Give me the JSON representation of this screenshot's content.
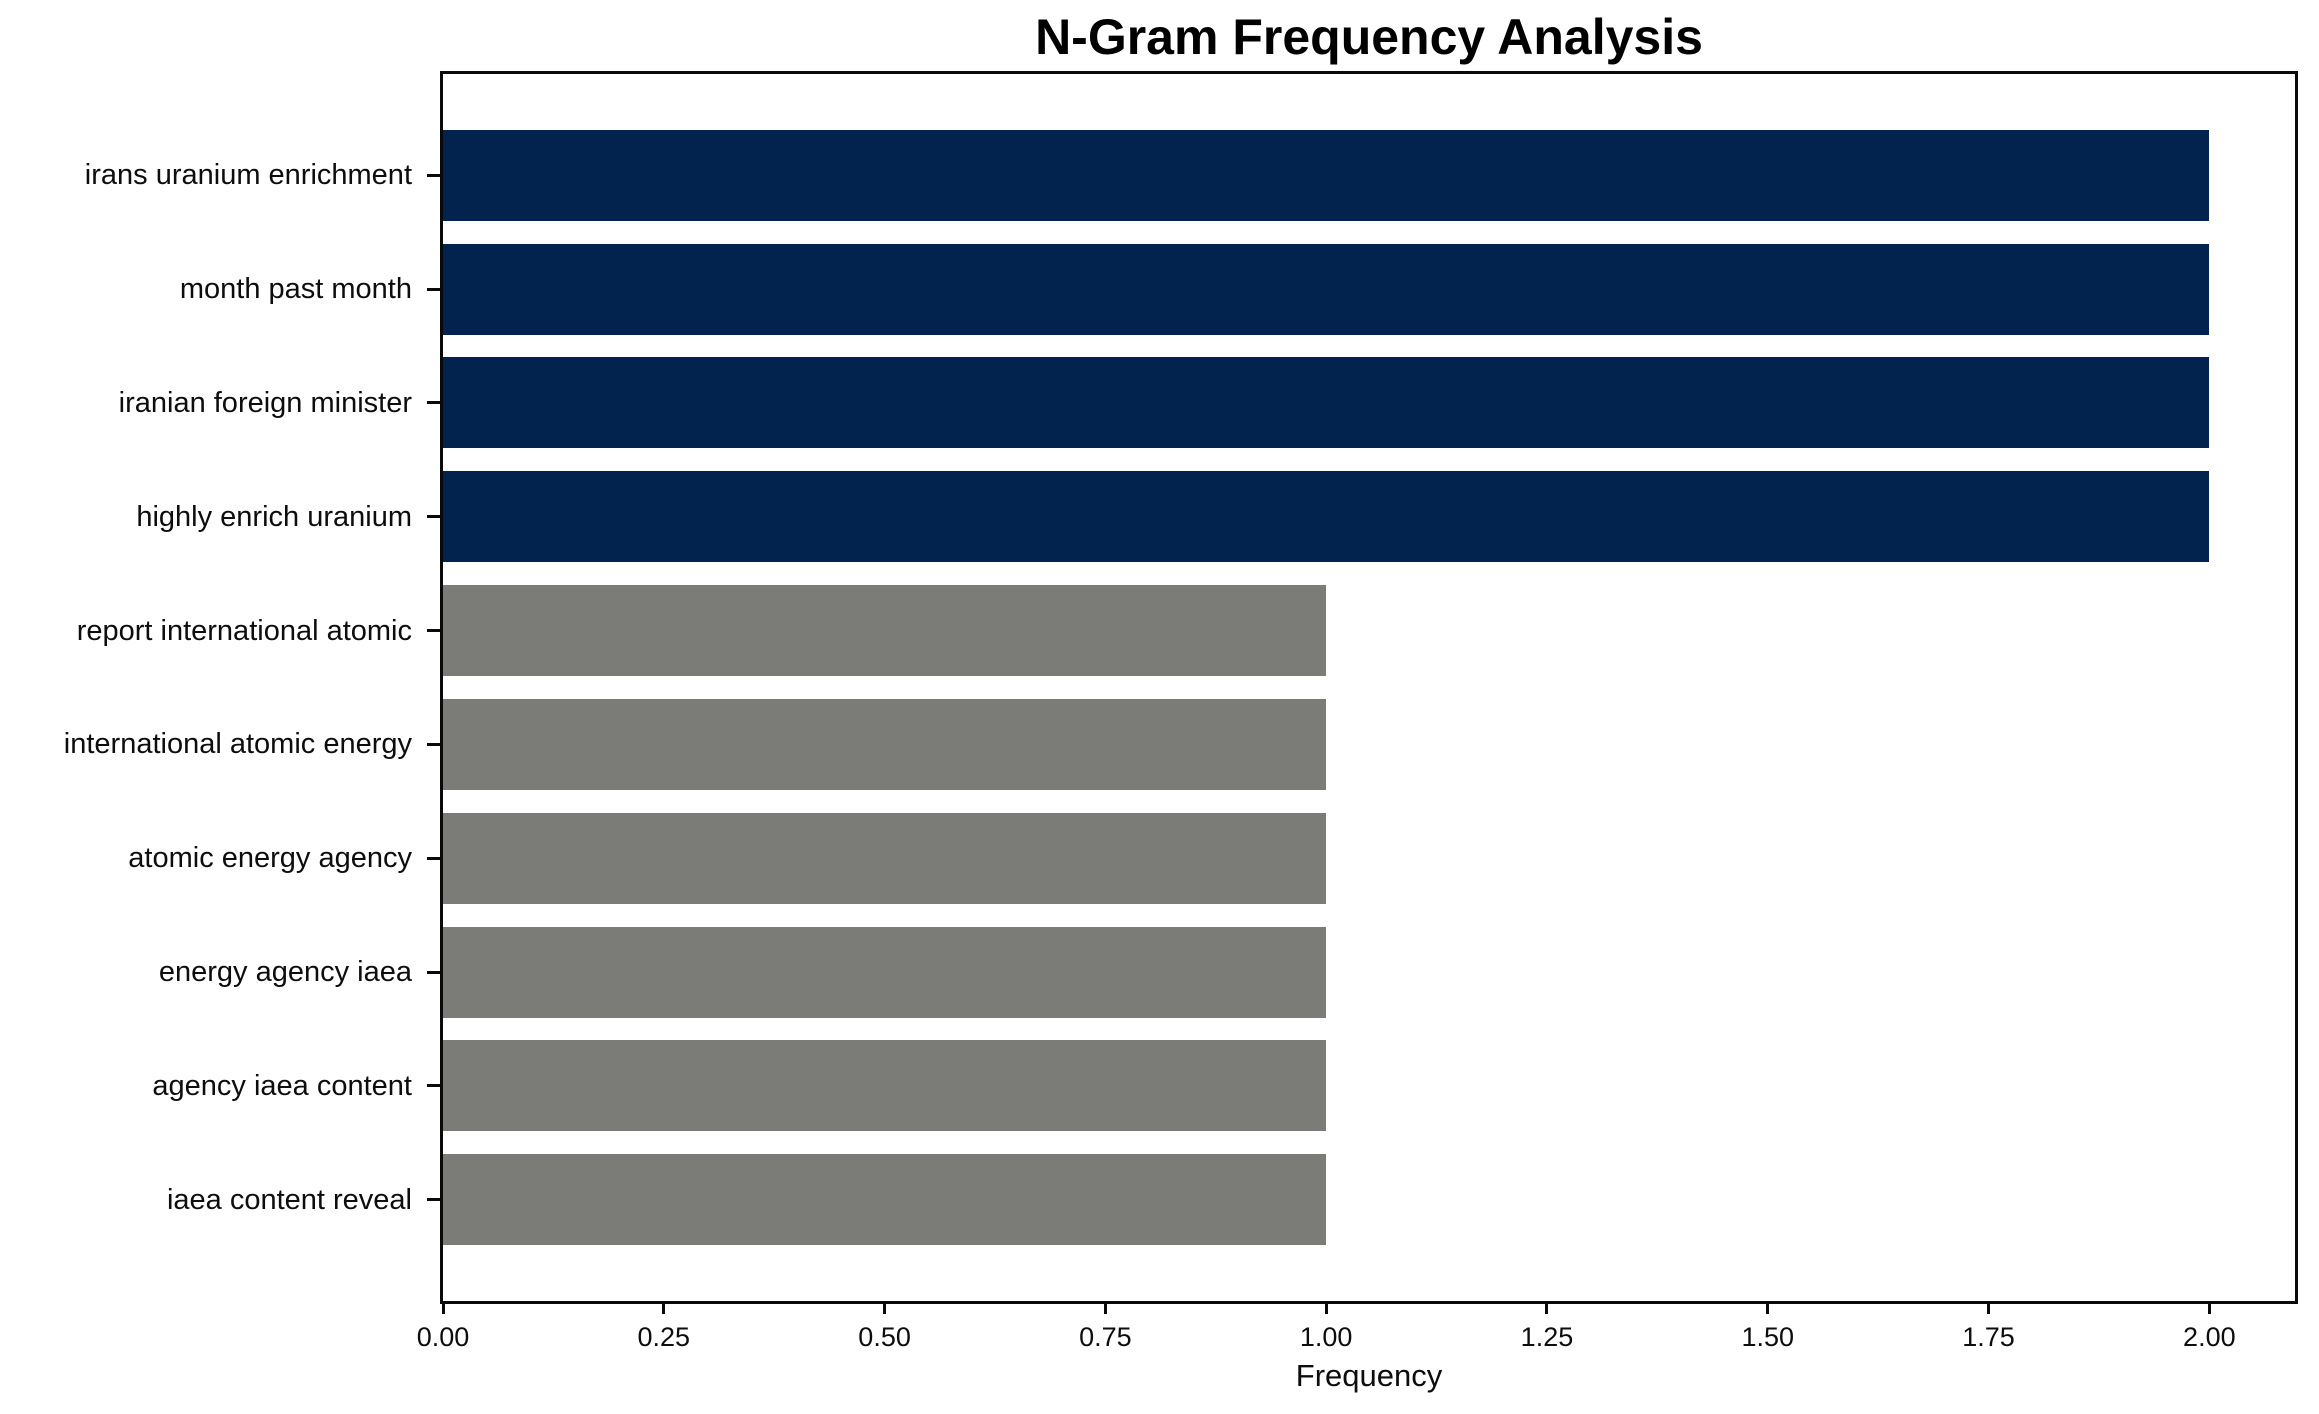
{
  "chart_data": {
    "type": "bar",
    "orientation": "horizontal",
    "title": "N-Gram Frequency Analysis",
    "xlabel": "Frequency",
    "ylabel": "",
    "categories": [
      "irans uranium enrichment",
      "month past month",
      "iranian foreign minister",
      "highly enrich uranium",
      "report international atomic",
      "international atomic energy",
      "atomic energy agency",
      "energy agency iaea",
      "agency iaea content",
      "iaea content reveal"
    ],
    "values": [
      2,
      2,
      2,
      2,
      1,
      1,
      1,
      1,
      1,
      1
    ],
    "bar_colors": [
      "#02234E",
      "#02234E",
      "#02234E",
      "#02234E",
      "#7B7B77",
      "#7B7B77",
      "#7B7B77",
      "#7B7B77",
      "#7B7B77",
      "#7B7B77"
    ],
    "colors": {
      "highlight": "#02234E",
      "default": "#7B7B77",
      "plot_background": "#F6F6F7",
      "spine": "#0A0A0A"
    },
    "xlim": [
      0,
      2.097
    ],
    "xticks": [
      0,
      0.25,
      0.5,
      0.75,
      1.0,
      1.25,
      1.5,
      1.75,
      2.0
    ],
    "xtick_labels": [
      "0.00",
      "0.25",
      "0.50",
      "0.75",
      "1.00",
      "1.25",
      "1.50",
      "1.75",
      "2.00"
    ],
    "grid": false,
    "legend": false
  }
}
